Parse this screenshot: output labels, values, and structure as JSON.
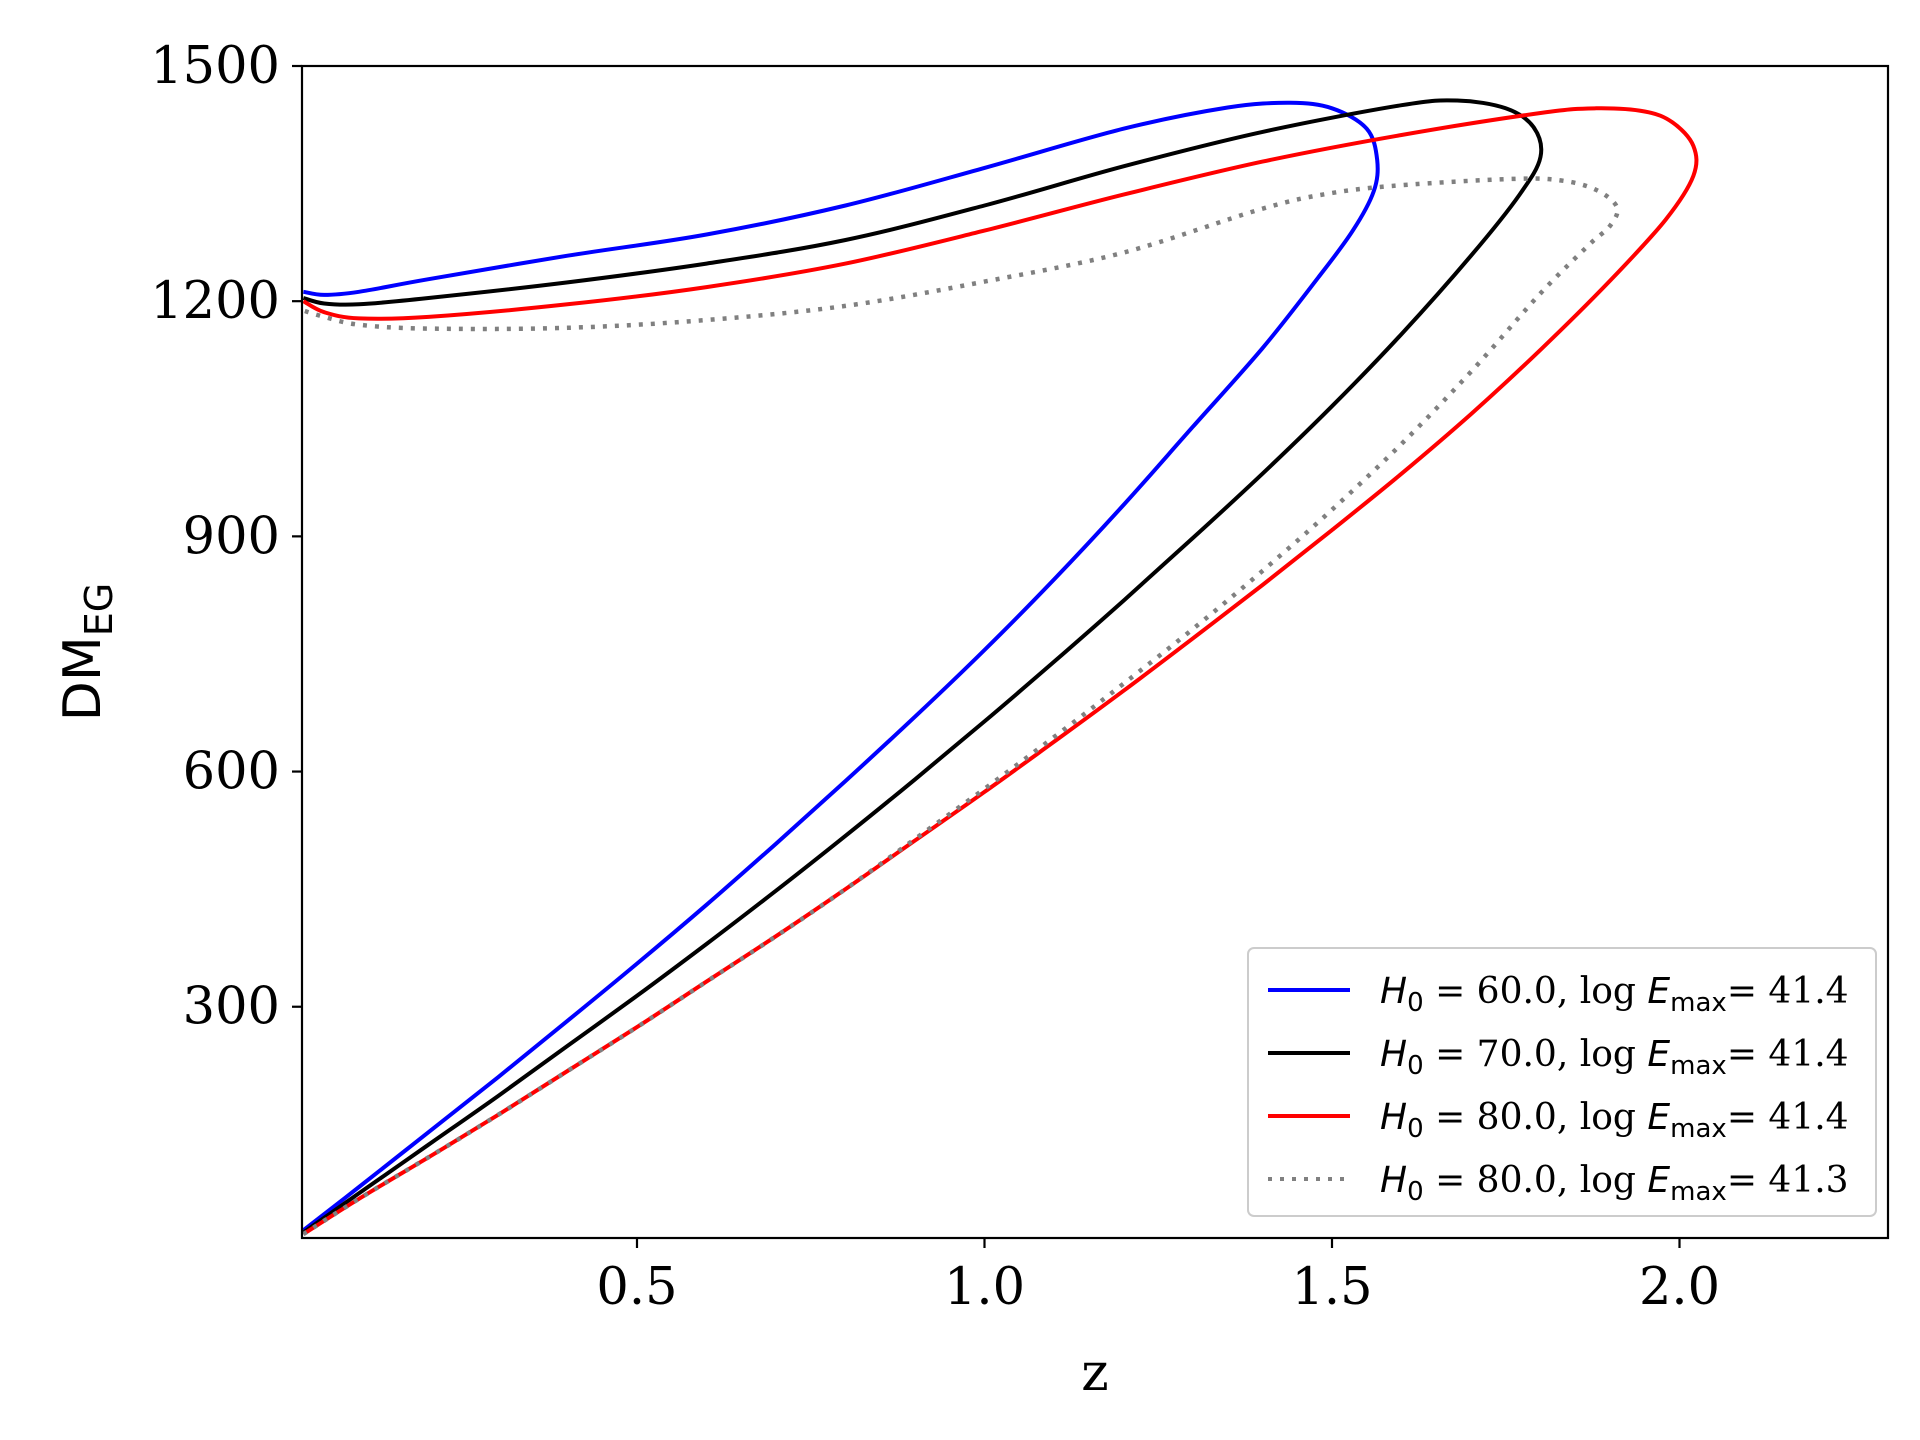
{
  "chart_data": {
    "type": "line",
    "title": "",
    "xlabel": "z",
    "ylabel": "DM",
    "ylabel_sub": "EG",
    "xlim": [
      0.018,
      2.3
    ],
    "ylim": [
      5,
      1500
    ],
    "x_ticks": [
      0.5,
      1.0,
      1.5,
      2.0
    ],
    "x_tick_labels": [
      "0.5",
      "1.0",
      "1.5",
      "2.0"
    ],
    "y_ticks": [
      300,
      600,
      900,
      1200,
      1500
    ],
    "y_tick_labels": [
      "300",
      "600",
      "900",
      "1200",
      "1500"
    ],
    "grid": false,
    "legend_position": "lower-right",
    "series": [
      {
        "name": "H0 = 60.0, log Emax= 41.4",
        "legend": {
          "h": "H",
          "h_sub": "0",
          "eq": " = ",
          "h0": "60.0",
          "mid": ", log ",
          "e": "E",
          "e_sub": "max",
          "eq2": "= ",
          "val": "41.4"
        },
        "color": "#0000ff",
        "style": "solid",
        "points": [
          [
            0.02,
            15
          ],
          [
            0.1,
            70
          ],
          [
            0.2,
            140
          ],
          [
            0.3,
            210
          ],
          [
            0.4,
            282
          ],
          [
            0.5,
            355
          ],
          [
            0.6,
            430
          ],
          [
            0.7,
            508
          ],
          [
            0.8,
            588
          ],
          [
            0.9,
            670
          ],
          [
            1.0,
            755
          ],
          [
            1.1,
            845
          ],
          [
            1.2,
            940
          ],
          [
            1.3,
            1040
          ],
          [
            1.4,
            1140
          ],
          [
            1.48,
            1230
          ],
          [
            1.53,
            1290
          ],
          [
            1.56,
            1340
          ],
          [
            1.565,
            1380
          ],
          [
            1.55,
            1420
          ],
          [
            1.5,
            1446
          ],
          [
            1.44,
            1453
          ],
          [
            1.35,
            1447
          ],
          [
            1.2,
            1420
          ],
          [
            1.0,
            1370
          ],
          [
            0.8,
            1322
          ],
          [
            0.6,
            1285
          ],
          [
            0.4,
            1258
          ],
          [
            0.2,
            1228
          ],
          [
            0.1,
            1212
          ],
          [
            0.05,
            1208
          ],
          [
            0.02,
            1212
          ]
        ]
      },
      {
        "name": "H0 = 70.0, log Emax= 41.4",
        "legend": {
          "h": "H",
          "h_sub": "0",
          "eq": " = ",
          "h0": "70.0",
          "mid": ", log ",
          "e": "E",
          "e_sub": "max",
          "eq2": "= ",
          "val": "41.4"
        },
        "color": "#000000",
        "style": "solid",
        "points": [
          [
            0.02,
            12
          ],
          [
            0.1,
            62
          ],
          [
            0.2,
            124
          ],
          [
            0.3,
            186
          ],
          [
            0.4,
            250
          ],
          [
            0.5,
            314
          ],
          [
            0.6,
            380
          ],
          [
            0.7,
            448
          ],
          [
            0.8,
            518
          ],
          [
            0.9,
            590
          ],
          [
            1.0,
            664
          ],
          [
            1.1,
            740
          ],
          [
            1.2,
            818
          ],
          [
            1.3,
            898
          ],
          [
            1.4,
            980
          ],
          [
            1.5,
            1066
          ],
          [
            1.6,
            1158
          ],
          [
            1.7,
            1258
          ],
          [
            1.77,
            1336
          ],
          [
            1.8,
            1384
          ],
          [
            1.79,
            1422
          ],
          [
            1.75,
            1446
          ],
          [
            1.68,
            1456
          ],
          [
            1.6,
            1450
          ],
          [
            1.4,
            1416
          ],
          [
            1.2,
            1372
          ],
          [
            1.0,
            1322
          ],
          [
            0.8,
            1278
          ],
          [
            0.6,
            1248
          ],
          [
            0.4,
            1224
          ],
          [
            0.2,
            1204
          ],
          [
            0.1,
            1196
          ],
          [
            0.05,
            1197
          ],
          [
            0.02,
            1204
          ]
        ]
      },
      {
        "name": "H0 = 80.0, log Emax= 41.4",
        "legend": {
          "h": "H",
          "h_sub": "0",
          "eq": " = ",
          "h0": "80.0",
          "mid": ", log ",
          "e": "E",
          "e_sub": "max",
          "eq2": "= ",
          "val": "41.4"
        },
        "color": "#ff0000",
        "style": "solid",
        "points": [
          [
            0.02,
            10
          ],
          [
            0.1,
            55
          ],
          [
            0.2,
            108
          ],
          [
            0.3,
            162
          ],
          [
            0.4,
            218
          ],
          [
            0.5,
            274
          ],
          [
            0.6,
            332
          ],
          [
            0.7,
            390
          ],
          [
            0.8,
            450
          ],
          [
            0.9,
            512
          ],
          [
            1.0,
            574
          ],
          [
            1.1,
            638
          ],
          [
            1.2,
            703
          ],
          [
            1.3,
            770
          ],
          [
            1.4,
            838
          ],
          [
            1.5,
            908
          ],
          [
            1.6,
            980
          ],
          [
            1.7,
            1056
          ],
          [
            1.8,
            1138
          ],
          [
            1.9,
            1226
          ],
          [
            1.98,
            1304
          ],
          [
            2.02,
            1360
          ],
          [
            2.02,
            1398
          ],
          [
            1.99,
            1428
          ],
          [
            1.95,
            1442
          ],
          [
            1.88,
            1446
          ],
          [
            1.8,
            1440
          ],
          [
            1.6,
            1412
          ],
          [
            1.4,
            1378
          ],
          [
            1.2,
            1336
          ],
          [
            1.0,
            1290
          ],
          [
            0.8,
            1248
          ],
          [
            0.6,
            1218
          ],
          [
            0.4,
            1196
          ],
          [
            0.2,
            1180
          ],
          [
            0.1,
            1178
          ],
          [
            0.05,
            1186
          ],
          [
            0.02,
            1200
          ]
        ]
      },
      {
        "name": "H0 = 80.0, log Emax= 41.3",
        "legend": {
          "h": "H",
          "h_sub": "0",
          "eq": " = ",
          "h0": "80.0",
          "mid": ", log ",
          "e": "E",
          "e_sub": "max",
          "eq2": "= ",
          "val": "41.3"
        },
        "color": "#808080",
        "style": "dotted",
        "points": [
          [
            0.02,
            10
          ],
          [
            0.1,
            55
          ],
          [
            0.2,
            108
          ],
          [
            0.3,
            162
          ],
          [
            0.4,
            218
          ],
          [
            0.5,
            274
          ],
          [
            0.6,
            332
          ],
          [
            0.7,
            390
          ],
          [
            0.8,
            450
          ],
          [
            0.9,
            514
          ],
          [
            1.0,
            578
          ],
          [
            1.1,
            644
          ],
          [
            1.2,
            712
          ],
          [
            1.3,
            782
          ],
          [
            1.4,
            856
          ],
          [
            1.5,
            934
          ],
          [
            1.6,
            1018
          ],
          [
            1.7,
            1110
          ],
          [
            1.8,
            1210
          ],
          [
            1.87,
            1272
          ],
          [
            1.9,
            1296
          ],
          [
            1.91,
            1320
          ],
          [
            1.88,
            1342
          ],
          [
            1.83,
            1354
          ],
          [
            1.76,
            1356
          ],
          [
            1.6,
            1348
          ],
          [
            1.5,
            1338
          ],
          [
            1.4,
            1318
          ],
          [
            1.2,
            1262
          ],
          [
            1.0,
            1225
          ],
          [
            0.8,
            1194
          ],
          [
            0.6,
            1176
          ],
          [
            0.4,
            1166
          ],
          [
            0.2,
            1165
          ],
          [
            0.1,
            1170
          ],
          [
            0.05,
            1180
          ],
          [
            0.02,
            1188
          ]
        ]
      }
    ]
  }
}
